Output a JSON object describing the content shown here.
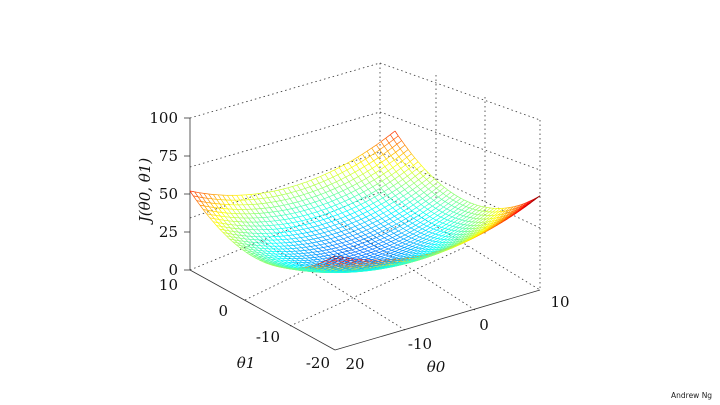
{
  "slide": {
    "credit": "Andrew Ng"
  },
  "chart_data": {
    "type": "surface",
    "function": "J(theta0, theta1) = 0.1*(theta0 - 0)^2 + 0.125*(theta1 - 0)^2 + 5 (approx. bowl)",
    "zlabel": "J(θ0, θ1)",
    "xlabel": "θ0",
    "ylabel": "θ1",
    "xlim": [
      -10,
      10
    ],
    "ylim": [
      -20,
      10
    ],
    "zlim": [
      0,
      100
    ],
    "xticks": [
      "10",
      "0",
      "-10",
      "20"
    ],
    "yticks": [
      "10",
      "0",
      "-10",
      "-20"
    ],
    "zticks": [
      "100",
      "75",
      "50",
      "25",
      "0"
    ],
    "colormap": "jet",
    "grid": true,
    "style": "mesh"
  }
}
